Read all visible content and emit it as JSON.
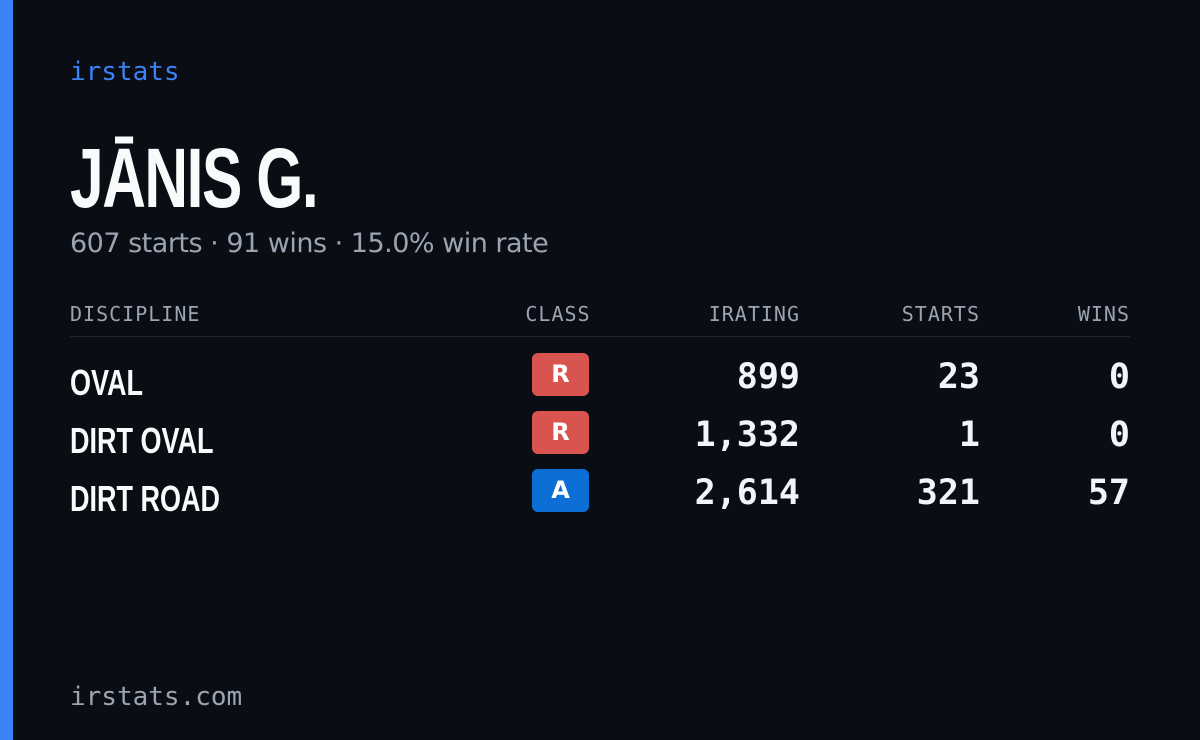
{
  "brand": "irstats",
  "driver": {
    "name": "JĀNIS G.",
    "summary": "607 starts · 91 wins · 15.0% win rate"
  },
  "table": {
    "headers": {
      "discipline": "DISCIPLINE",
      "class": "CLASS",
      "irating": "IRATING",
      "starts": "STARTS",
      "wins": "WINS"
    },
    "rows": [
      {
        "discipline": "OVAL",
        "class": "R",
        "class_color": "#d9534f",
        "irating": "899",
        "starts": "23",
        "wins": "0"
      },
      {
        "discipline": "DIRT OVAL",
        "class": "R",
        "class_color": "#d9534f",
        "irating": "1,332",
        "starts": "1",
        "wins": "0"
      },
      {
        "discipline": "DIRT ROAD",
        "class": "A",
        "class_color": "#0b6fd6",
        "irating": "2,614",
        "starts": "321",
        "wins": "57"
      }
    ]
  },
  "footer": "irstats.com",
  "colors": {
    "accent": "#3b82f6",
    "background": "#0a0d14",
    "muted": "#9aa4b2"
  }
}
